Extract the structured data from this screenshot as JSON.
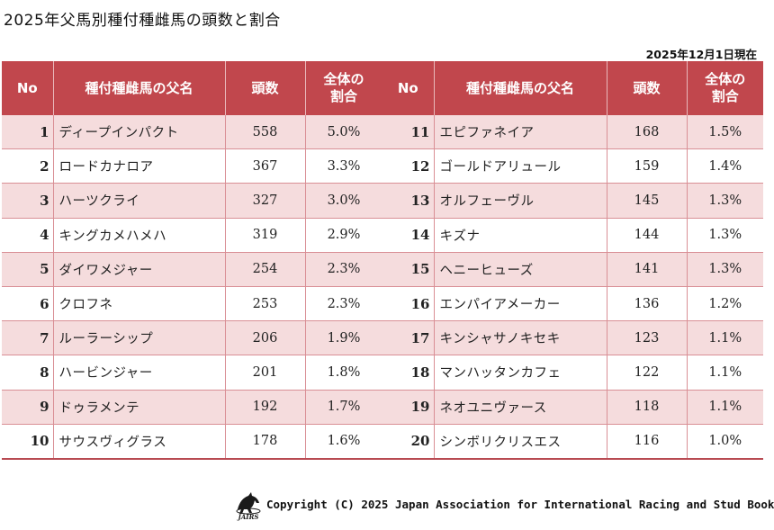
{
  "title": "2025年父馬別種付種雌馬の頭数と割合",
  "as_of": "2025年12月1日現在",
  "headers": {
    "no": "No",
    "name": "種付種雌馬の父名",
    "count": "頭数",
    "share_line1": "全体の",
    "share_line2": "割合"
  },
  "left_rows": [
    {
      "no": "1",
      "name": "ディープインパクト",
      "count": "558",
      "share": "5.0%"
    },
    {
      "no": "2",
      "name": "ロードカナロア",
      "count": "367",
      "share": "3.3%"
    },
    {
      "no": "3",
      "name": "ハーツクライ",
      "count": "327",
      "share": "3.0%"
    },
    {
      "no": "4",
      "name": "キングカメハメハ",
      "count": "319",
      "share": "2.9%"
    },
    {
      "no": "5",
      "name": "ダイワメジャー",
      "count": "254",
      "share": "2.3%"
    },
    {
      "no": "6",
      "name": "クロフネ",
      "count": "253",
      "share": "2.3%"
    },
    {
      "no": "7",
      "name": "ルーラーシップ",
      "count": "206",
      "share": "1.9%"
    },
    {
      "no": "8",
      "name": "ハービンジャー",
      "count": "201",
      "share": "1.8%"
    },
    {
      "no": "9",
      "name": "ドゥラメンテ",
      "count": "192",
      "share": "1.7%"
    },
    {
      "no": "10",
      "name": "サウスヴィグラス",
      "count": "178",
      "share": "1.6%"
    }
  ],
  "right_rows": [
    {
      "no": "11",
      "name": "エピファネイア",
      "count": "168",
      "share": "1.5%"
    },
    {
      "no": "12",
      "name": "ゴールドアリュール",
      "count": "159",
      "share": "1.4%"
    },
    {
      "no": "13",
      "name": "オルフェーヴル",
      "count": "145",
      "share": "1.3%"
    },
    {
      "no": "14",
      "name": "キズナ",
      "count": "144",
      "share": "1.3%"
    },
    {
      "no": "15",
      "name": "ヘニーヒューズ",
      "count": "141",
      "share": "1.3%"
    },
    {
      "no": "16",
      "name": "エンパイアメーカー",
      "count": "136",
      "share": "1.2%"
    },
    {
      "no": "17",
      "name": "キンシャサノキセキ",
      "count": "123",
      "share": "1.1%"
    },
    {
      "no": "18",
      "name": "マンハッタンカフェ",
      "count": "122",
      "share": "1.1%"
    },
    {
      "no": "19",
      "name": "ネオユニヴァース",
      "count": "118",
      "share": "1.1%"
    },
    {
      "no": "20",
      "name": "シンボリクリスエス",
      "count": "116",
      "share": "1.0%"
    }
  ],
  "footer": {
    "logo_icon": "jairs-horse-logo-icon",
    "logo_text": "JAIRS",
    "copyright": "Copyright (C) 2025 Japan Association for International Racing and Stud Book"
  },
  "colors": {
    "header_bg": "#c1474d",
    "row_alt_bg": "#f5dcdd",
    "border": "#d98f95"
  }
}
